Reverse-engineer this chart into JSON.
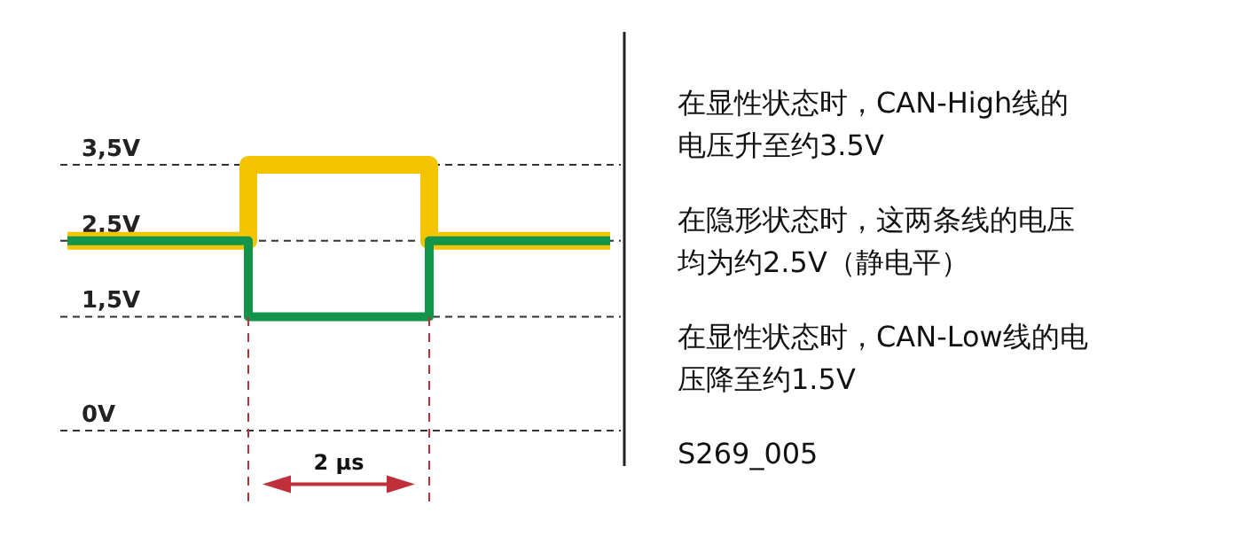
{
  "chart_data": {
    "type": "step",
    "categories": [
      null,
      null,
      null,
      null
    ],
    "series": [
      {
        "color": "#f5c400",
        "values": [
          2.5,
          3.5,
          2.5,
          2.5
        ]
      },
      {
        "color": "#12944a",
        "values": [
          2.5,
          1.5,
          2.5,
          2.5
        ]
      }
    ],
    "ylim": [
      0,
      3.5
    ],
    "yticks": [
      {
        "value": 0,
        "label": "0V"
      },
      {
        "value": 1.5,
        "label": "1,5V"
      },
      {
        "value": 2.5,
        "label": "2,5V"
      },
      {
        "value": 3.5,
        "label": "3,5V"
      }
    ],
    "grid": "y",
    "line_style": "solid",
    "marker": "none",
    "annotations": [
      "在显性状态时，CAN-High线的电压升至约3.5V",
      "在隐形状态时，这两条线的电压均为约2.5V（静电平）",
      "在显性状态时，CAN-Low线的电压降至约1.5V",
      "S269_005",
      {
        "text": "2 μs"
      }
    ]
  }
}
